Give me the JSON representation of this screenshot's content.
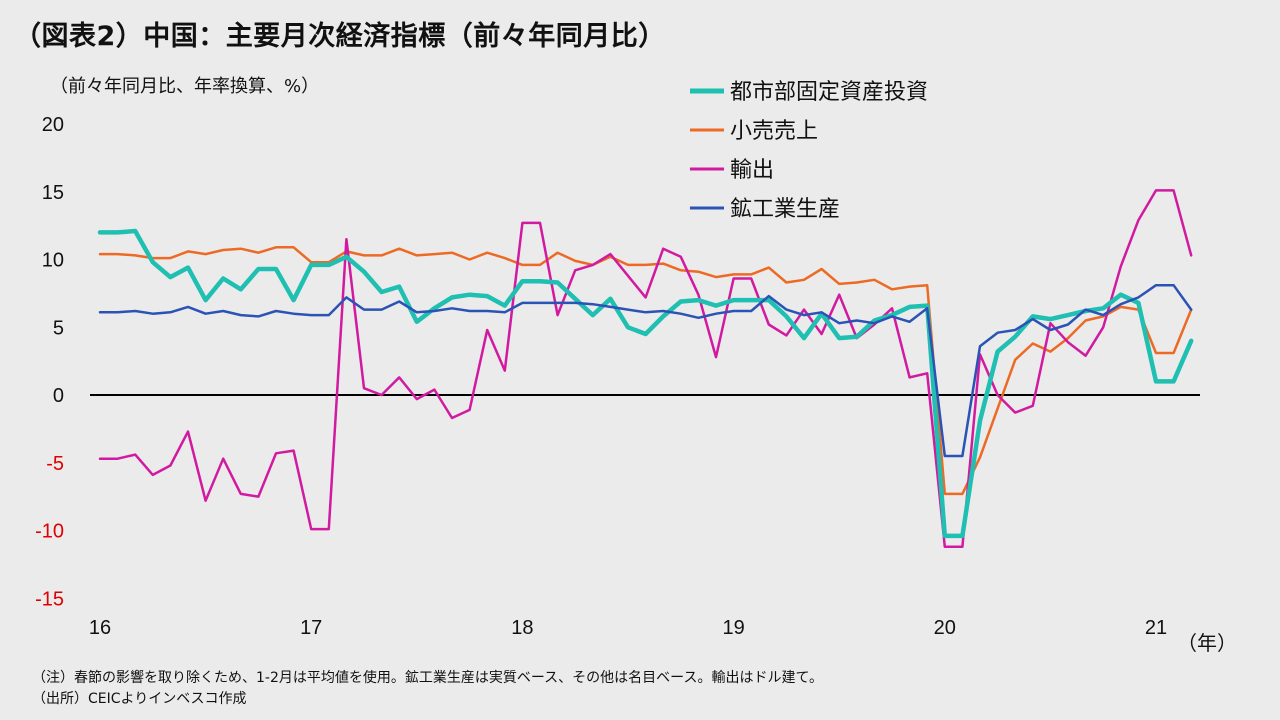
{
  "title": "（図表2）中国：主要月次経済指標（前々年同月比）",
  "unit_label": "（前々年同月比、年率換算、%）",
  "notes": [
    "（注）春節の影響を取り除くため、1-2月は平均値を使用。鉱工業生産は実質ベース、その他は名目ベース。輸出はドル建て。",
    "（出所）CEICよりインベスコ作成"
  ],
  "chart_data": {
    "type": "line",
    "title": "",
    "xlabel": "（年）",
    "ylabel": "（前々年同月比、年率換算、%）",
    "ylim": [
      -15,
      20
    ],
    "yticks": [
      "20",
      "15",
      "10",
      "5",
      "0",
      "-5",
      "-10",
      "-15"
    ],
    "x_tick_labels": [
      "16",
      "17",
      "18",
      "19",
      "20",
      "21"
    ],
    "x_tick_month_index": [
      0,
      12,
      24,
      36,
      48,
      60
    ],
    "grid": false,
    "legend_position": "top-center",
    "colors": {
      "negative_tick": "#e00000",
      "zero_line": "#000000"
    },
    "series": [
      {
        "name": "都市部固定資産投資",
        "color": "#1fbfb1",
        "values": [
          12.0,
          12.0,
          12.1,
          9.8,
          8.7,
          9.4,
          7.0,
          8.6,
          7.8,
          9.3,
          9.3,
          7.0,
          9.6,
          9.6,
          10.2,
          9.1,
          7.6,
          8.0,
          5.4,
          6.4,
          7.2,
          7.4,
          7.3,
          6.6,
          8.4,
          8.4,
          8.3,
          7.1,
          5.9,
          7.1,
          5.0,
          4.5,
          5.8,
          6.9,
          7.0,
          6.6,
          7.0,
          7.0,
          7.0,
          5.8,
          4.2,
          6.0,
          4.2,
          4.3,
          5.5,
          5.9,
          6.5,
          6.6,
          -10.4,
          -10.4,
          -1.9,
          3.2,
          4.3,
          5.8,
          5.6,
          5.9,
          6.2,
          6.4,
          7.4,
          6.8,
          1.0,
          1.0,
          4.0
        ]
      },
      {
        "name": "小売売上",
        "color": "#ed6a24",
        "values": [
          10.4,
          10.4,
          10.3,
          10.1,
          10.1,
          10.6,
          10.4,
          10.7,
          10.8,
          10.5,
          10.9,
          10.9,
          9.8,
          9.8,
          10.6,
          10.3,
          10.3,
          10.8,
          10.3,
          10.4,
          10.5,
          10.0,
          10.5,
          10.1,
          9.6,
          9.6,
          10.5,
          9.9,
          9.6,
          10.2,
          9.6,
          9.6,
          9.7,
          9.2,
          9.1,
          8.7,
          8.9,
          8.9,
          9.4,
          8.3,
          8.5,
          9.3,
          8.2,
          8.3,
          8.5,
          7.8,
          8.0,
          8.1,
          -7.3,
          -7.3,
          -4.6,
          -1.0,
          2.6,
          3.8,
          3.2,
          4.2,
          5.5,
          5.8,
          6.5,
          6.3,
          3.1,
          3.1,
          6.3
        ]
      },
      {
        "name": "輸出",
        "color": "#d11aa0",
        "values": [
          -4.7,
          -4.7,
          -4.4,
          -5.9,
          -5.2,
          -2.7,
          -7.8,
          -4.7,
          -7.3,
          -7.5,
          -4.3,
          -4.1,
          -9.9,
          -9.9,
          11.5,
          0.5,
          0.0,
          1.3,
          -0.3,
          0.4,
          -1.7,
          -1.1,
          4.8,
          1.8,
          12.7,
          12.7,
          5.9,
          9.2,
          9.6,
          10.4,
          8.8,
          7.2,
          10.8,
          10.2,
          7.4,
          2.8,
          8.6,
          8.6,
          5.2,
          4.4,
          6.3,
          4.5,
          7.4,
          4.2,
          5.2,
          6.4,
          1.3,
          1.6,
          -11.2,
          -11.2,
          3.0,
          0.0,
          -1.3,
          -0.8,
          5.3,
          3.9,
          2.9,
          5.0,
          9.5,
          12.9,
          15.1,
          15.1,
          10.3
        ]
      },
      {
        "name": "鉱工業生産",
        "color": "#2b53b6",
        "values": [
          6.1,
          6.1,
          6.2,
          6.0,
          6.1,
          6.5,
          6.0,
          6.2,
          5.9,
          5.8,
          6.2,
          6.0,
          5.9,
          5.9,
          7.2,
          6.3,
          6.3,
          6.9,
          6.1,
          6.2,
          6.4,
          6.2,
          6.2,
          6.1,
          6.8,
          6.8,
          6.8,
          6.8,
          6.7,
          6.5,
          6.3,
          6.1,
          6.2,
          6.0,
          5.7,
          6.0,
          6.2,
          6.2,
          7.3,
          6.3,
          5.9,
          6.1,
          5.3,
          5.5,
          5.3,
          5.8,
          5.4,
          6.4,
          -4.5,
          -4.5,
          3.6,
          4.6,
          4.8,
          5.6,
          4.8,
          5.2,
          6.3,
          5.9,
          6.7,
          7.2,
          8.1,
          8.1,
          6.3
        ]
      }
    ]
  }
}
